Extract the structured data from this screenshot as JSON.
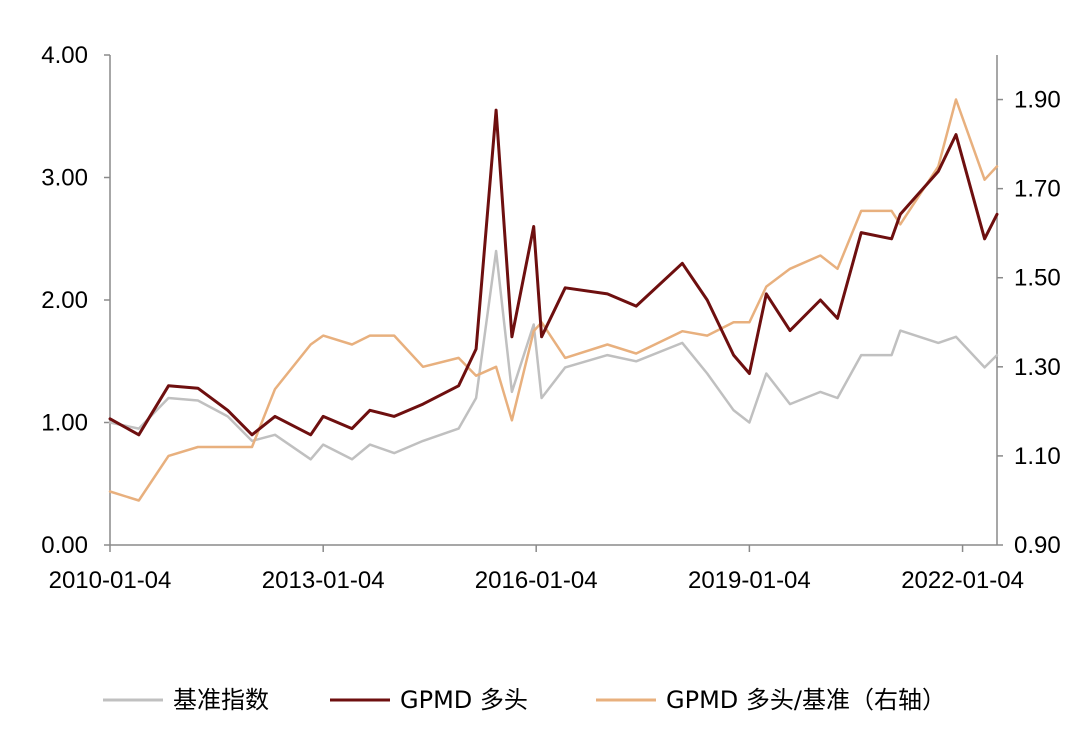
{
  "chart_data": {
    "type": "line",
    "title": "",
    "xlabel": "",
    "ylabel": "",
    "x_tick_labels": [
      "2010-01-04",
      "2013-01-04",
      "2016-01-04",
      "2019-01-04",
      "2022-01-04"
    ],
    "x_range": [
      "2010-01-04",
      "2022-06-30"
    ],
    "y_left": {
      "range": [
        0,
        4
      ],
      "tick_labels": [
        "0.00",
        "1.00",
        "2.00",
        "3.00",
        "4.00"
      ]
    },
    "y_right": {
      "range": [
        0.9,
        2.0
      ],
      "tick_labels": [
        "0.90",
        "1.10",
        "1.30",
        "1.50",
        "1.70",
        "1.90"
      ]
    },
    "grid": false,
    "legend_position": "bottom",
    "series": [
      {
        "name": "基准指数",
        "axis": "left",
        "color": "#c0c0c0",
        "points": [
          [
            "2010-01-04",
            1.0
          ],
          [
            "2010-06-01",
            0.95
          ],
          [
            "2010-11-01",
            1.2
          ],
          [
            "2011-04-01",
            1.18
          ],
          [
            "2011-09-01",
            1.05
          ],
          [
            "2012-01-04",
            0.85
          ],
          [
            "2012-05-01",
            0.9
          ],
          [
            "2012-11-01",
            0.7
          ],
          [
            "2013-01-04",
            0.82
          ],
          [
            "2013-06-01",
            0.7
          ],
          [
            "2013-09-01",
            0.82
          ],
          [
            "2014-01-04",
            0.75
          ],
          [
            "2014-06-01",
            0.85
          ],
          [
            "2014-12-01",
            0.95
          ],
          [
            "2015-03-01",
            1.2
          ],
          [
            "2015-06-12",
            2.4
          ],
          [
            "2015-09-01",
            1.25
          ],
          [
            "2015-12-22",
            1.8
          ],
          [
            "2016-02-01",
            1.2
          ],
          [
            "2016-06-01",
            1.45
          ],
          [
            "2017-01-04",
            1.55
          ],
          [
            "2017-06-01",
            1.5
          ],
          [
            "2018-01-24",
            1.65
          ],
          [
            "2018-06-01",
            1.4
          ],
          [
            "2018-10-15",
            1.1
          ],
          [
            "2019-01-04",
            1.0
          ],
          [
            "2019-04-01",
            1.4
          ],
          [
            "2019-08-01",
            1.15
          ],
          [
            "2020-01-04",
            1.25
          ],
          [
            "2020-04-01",
            1.2
          ],
          [
            "2020-08-01",
            1.55
          ],
          [
            "2021-01-04",
            1.55
          ],
          [
            "2021-02-18",
            1.75
          ],
          [
            "2021-09-01",
            1.65
          ],
          [
            "2021-12-01",
            1.7
          ],
          [
            "2022-04-27",
            1.45
          ],
          [
            "2022-06-30",
            1.55
          ]
        ]
      },
      {
        "name": "GPMD 多头",
        "axis": "left",
        "color": "#6e0f0f",
        "points": [
          [
            "2010-01-04",
            1.03
          ],
          [
            "2010-06-01",
            0.9
          ],
          [
            "2010-11-01",
            1.3
          ],
          [
            "2011-04-01",
            1.28
          ],
          [
            "2011-09-01",
            1.1
          ],
          [
            "2012-01-04",
            0.9
          ],
          [
            "2012-05-01",
            1.05
          ],
          [
            "2012-11-01",
            0.9
          ],
          [
            "2013-01-04",
            1.05
          ],
          [
            "2013-06-01",
            0.95
          ],
          [
            "2013-09-01",
            1.1
          ],
          [
            "2014-01-04",
            1.05
          ],
          [
            "2014-06-01",
            1.15
          ],
          [
            "2014-12-01",
            1.3
          ],
          [
            "2015-03-01",
            1.6
          ],
          [
            "2015-06-12",
            3.55
          ],
          [
            "2015-09-01",
            1.7
          ],
          [
            "2015-12-22",
            2.6
          ],
          [
            "2016-02-01",
            1.7
          ],
          [
            "2016-06-01",
            2.1
          ],
          [
            "2017-01-04",
            2.05
          ],
          [
            "2017-06-01",
            1.95
          ],
          [
            "2018-01-24",
            2.3
          ],
          [
            "2018-06-01",
            2.0
          ],
          [
            "2018-10-15",
            1.55
          ],
          [
            "2019-01-04",
            1.4
          ],
          [
            "2019-04-01",
            2.05
          ],
          [
            "2019-08-01",
            1.75
          ],
          [
            "2020-01-04",
            2.0
          ],
          [
            "2020-04-01",
            1.85
          ],
          [
            "2020-08-01",
            2.55
          ],
          [
            "2021-01-04",
            2.5
          ],
          [
            "2021-02-18",
            2.7
          ],
          [
            "2021-09-01",
            3.05
          ],
          [
            "2021-12-01",
            3.35
          ],
          [
            "2022-04-27",
            2.5
          ],
          [
            "2022-06-30",
            2.7
          ]
        ]
      },
      {
        "name": "GPMD 多头/基准（右轴）",
        "axis": "right",
        "color": "#e8b07e",
        "points": [
          [
            "2010-01-04",
            1.02
          ],
          [
            "2010-06-01",
            1.0
          ],
          [
            "2010-11-01",
            1.1
          ],
          [
            "2011-04-01",
            1.12
          ],
          [
            "2011-09-01",
            1.12
          ],
          [
            "2012-01-04",
            1.12
          ],
          [
            "2012-05-01",
            1.25
          ],
          [
            "2012-11-01",
            1.35
          ],
          [
            "2013-01-04",
            1.37
          ],
          [
            "2013-06-01",
            1.35
          ],
          [
            "2013-09-01",
            1.37
          ],
          [
            "2014-01-04",
            1.37
          ],
          [
            "2014-06-01",
            1.3
          ],
          [
            "2014-12-01",
            1.32
          ],
          [
            "2015-03-01",
            1.28
          ],
          [
            "2015-06-12",
            1.3
          ],
          [
            "2015-09-01",
            1.18
          ],
          [
            "2015-12-22",
            1.38
          ],
          [
            "2016-02-01",
            1.4
          ],
          [
            "2016-06-01",
            1.32
          ],
          [
            "2017-01-04",
            1.35
          ],
          [
            "2017-06-01",
            1.33
          ],
          [
            "2018-01-24",
            1.38
          ],
          [
            "2018-06-01",
            1.37
          ],
          [
            "2018-10-15",
            1.4
          ],
          [
            "2019-01-04",
            1.4
          ],
          [
            "2019-04-01",
            1.48
          ],
          [
            "2019-08-01",
            1.52
          ],
          [
            "2020-01-04",
            1.55
          ],
          [
            "2020-04-01",
            1.52
          ],
          [
            "2020-08-01",
            1.65
          ],
          [
            "2021-01-04",
            1.65
          ],
          [
            "2021-02-18",
            1.62
          ],
          [
            "2021-09-01",
            1.75
          ],
          [
            "2021-12-01",
            1.9
          ],
          [
            "2022-04-27",
            1.72
          ],
          [
            "2022-06-30",
            1.75
          ]
        ]
      }
    ]
  }
}
